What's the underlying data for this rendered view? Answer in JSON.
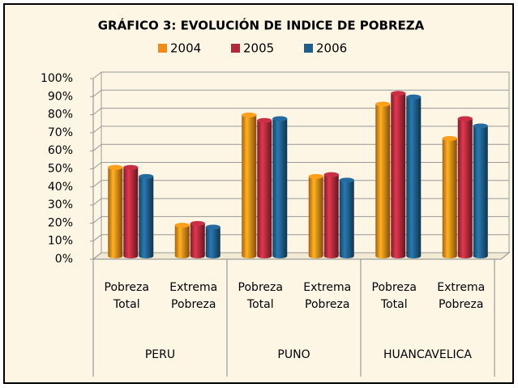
{
  "chart_data": {
    "type": "bar3d",
    "title": "GRÁFICO 3: EVOLUCIÓN DE INDICE DE POBREZA",
    "categories": [
      "Pobreza Total",
      "Extrema Pobreza",
      "Pobreza Total",
      "Extrema Pobreza",
      "Pobreza Total",
      "Extrema Pobreza"
    ],
    "groups": [
      "PERU",
      "PUNO",
      "HUANCAVELICA"
    ],
    "series": [
      {
        "name": "2004",
        "color": "#f28a17",
        "values": [
          49,
          17,
          78,
          44,
          84,
          65
        ]
      },
      {
        "name": "2005",
        "color": "#b02a3c",
        "values": [
          49,
          18,
          75,
          45,
          90,
          76
        ]
      },
      {
        "name": "2006",
        "color": "#1f5e8a",
        "values": [
          44,
          16,
          76,
          42,
          88,
          72
        ]
      }
    ],
    "ylim": [
      0,
      100
    ],
    "yticks": [
      {
        "value": 0,
        "label": "0%"
      },
      {
        "value": 10,
        "label": "10%"
      },
      {
        "value": 20,
        "label": "20%"
      },
      {
        "value": 30,
        "label": "30%"
      },
      {
        "value": 40,
        "label": "40%"
      },
      {
        "value": 50,
        "label": "50%"
      },
      {
        "value": 60,
        "label": "60%"
      },
      {
        "value": 70,
        "label": "70%"
      },
      {
        "value": 80,
        "label": "80%"
      },
      {
        "value": 90,
        "label": "90%"
      },
      {
        "value": 100,
        "label": "100%"
      }
    ],
    "grid": true,
    "legend": "top"
  }
}
